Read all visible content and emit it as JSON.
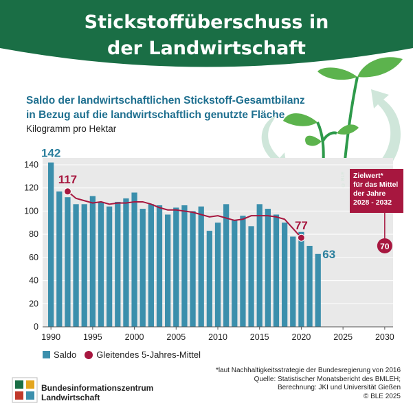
{
  "header": {
    "title_line1": "Stickstoffüberschuss in",
    "title_line2": "der Landwirtschaft"
  },
  "subtitle_line1": "Saldo der landwirtschaftlichen Stickstoff-Gesamtbilanz",
  "subtitle_line2": "in Bezug auf die landwirtschaftlich genutzte Fläche",
  "unit": "Kilogramm pro Hektar",
  "target_box": {
    "line1": "Zielwert*",
    "line2": "für das Mittel",
    "line3": "der Jahre",
    "line4": "2028 - 2032"
  },
  "image_copyright": "© BLE",
  "footnote": {
    "line1": "*laut Nachhaltigkeitsstrategie der Bundesregierung von 2016",
    "line2": "Quelle: Statistischer Monatsbericht des BMLEH;",
    "line3": "Berechnung: JKI und Universität Gießen",
    "line4": "© BLE 2025"
  },
  "logo": {
    "line1": "Bundesinformationszentrum",
    "line2": "Landwirtschaft"
  },
  "colors": {
    "header_green": "#1a6e45",
    "bar": "#3b8fac",
    "line": "#a7173f",
    "plot_bg": "#e9e9e9",
    "subtitle": "#1e6f8f"
  },
  "chart_data": {
    "type": "bar",
    "x": [
      1990,
      1991,
      1992,
      1993,
      1994,
      1995,
      1996,
      1997,
      1998,
      1999,
      2000,
      2001,
      2002,
      2003,
      2004,
      2005,
      2006,
      2007,
      2008,
      2009,
      2010,
      2011,
      2012,
      2013,
      2014,
      2015,
      2016,
      2017,
      2018,
      2019,
      2020,
      2021,
      2022
    ],
    "series": [
      {
        "name": "Saldo",
        "type": "bar",
        "values": [
          142,
          117,
          112,
          106,
          106,
          113,
          108,
          104,
          108,
          111,
          116,
          102,
          106,
          105,
          97,
          103,
          105,
          100,
          104,
          83,
          90,
          106,
          92,
          96,
          87,
          106,
          102,
          97,
          90,
          78,
          82,
          70,
          63
        ]
      },
      {
        "name": "Gleitendes 5-Jahres-Mittel",
        "type": "line",
        "x": [
          1992,
          1993,
          1994,
          1995,
          1996,
          1997,
          1998,
          1999,
          2000,
          2001,
          2002,
          2003,
          2004,
          2005,
          2006,
          2007,
          2008,
          2009,
          2010,
          2011,
          2012,
          2013,
          2014,
          2015,
          2016,
          2017,
          2018,
          2019,
          2020
        ],
        "values": [
          117,
          111,
          109,
          107,
          108,
          106,
          107,
          107,
          108,
          108,
          106,
          103,
          101,
          101,
          100,
          99,
          97,
          95,
          96,
          94,
          92,
          93,
          96,
          96,
          96,
          95,
          93,
          85,
          77
        ]
      }
    ],
    "target": {
      "x": 2030,
      "value": 70
    },
    "data_labels": [
      {
        "x": 1990,
        "value": 142,
        "series": "Saldo"
      },
      {
        "x": 1992,
        "value": 117,
        "series": "Gleitendes 5-Jahres-Mittel"
      },
      {
        "x": 2020,
        "value": 77,
        "series": "Gleitendes 5-Jahres-Mittel"
      },
      {
        "x": 2022,
        "value": 63,
        "series": "Saldo"
      },
      {
        "x": 2030,
        "value": 70,
        "series": "Zielwert"
      }
    ],
    "xlim": [
      1989,
      2031
    ],
    "ylim": [
      0,
      140
    ],
    "y_ticks": [
      0,
      20,
      40,
      60,
      80,
      100,
      120,
      140
    ],
    "x_ticks": [
      1990,
      1995,
      2000,
      2005,
      2010,
      2015,
      2020,
      2025,
      2030
    ],
    "grid": true,
    "legend_placement": "bottom-left"
  }
}
